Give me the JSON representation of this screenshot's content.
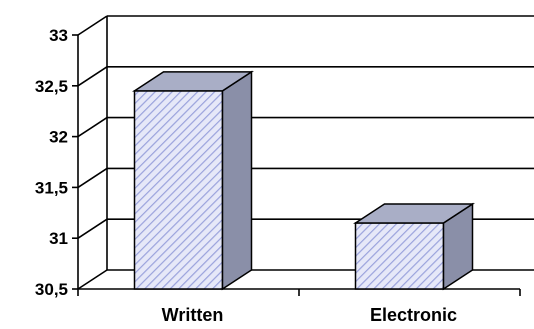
{
  "chart_data": {
    "type": "bar",
    "style": "3d-column",
    "title": "",
    "xlabel": "",
    "ylabel": "",
    "categories": [
      "Written",
      "Electronic"
    ],
    "values": [
      32.45,
      31.15
    ],
    "ylim": [
      30.5,
      33
    ],
    "yticks": [
      "30,5",
      "31",
      "31,5",
      "32",
      "32,5",
      "33"
    ],
    "grid": true,
    "legend": "none",
    "colors": {
      "bar_front_stripe": "#9aa2dc",
      "bar_front_bg": "#e6e8f8",
      "bar_side": "#8a8fa8",
      "bar_top": "#a9aec6",
      "bar_outline": "#000000",
      "gridline": "#000000"
    }
  }
}
